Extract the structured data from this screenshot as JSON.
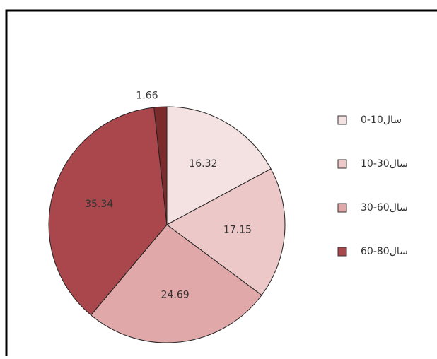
{
  "chart_data": {
    "type": "pie",
    "categories": [
      "سال10-0",
      "سال30-10",
      "سال60-30",
      "سال80-60",
      null
    ],
    "values": [
      16.32,
      17.15,
      24.69,
      35.34,
      1.66
    ],
    "colors": [
      "#f4e1e1",
      "#ecc8c8",
      "#e0a8a8",
      "#a9474d",
      "#7b2b2b"
    ],
    "legend": "right"
  }
}
